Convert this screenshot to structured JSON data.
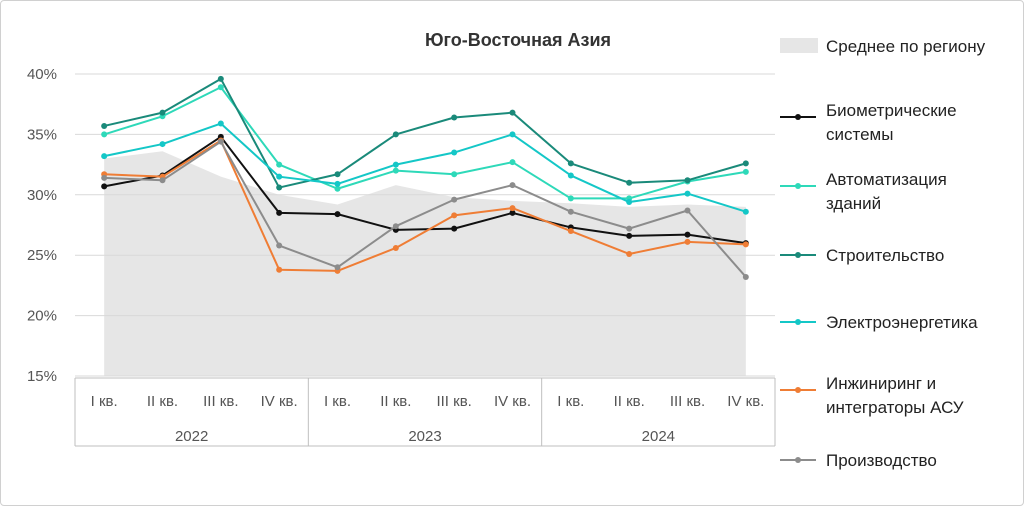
{
  "chart_data": {
    "type": "line",
    "title": "Юго-Восточная Азия",
    "ylim": [
      15,
      40
    ],
    "yticks": [
      "15%",
      "20%",
      "25%",
      "30%",
      "35%",
      "40%"
    ],
    "ytick_values": [
      15,
      20,
      25,
      30,
      35,
      40
    ],
    "categories": [
      "I кв.",
      "II кв.",
      "III кв.",
      "IV кв.",
      "I кв.",
      "II кв.",
      "III кв.",
      "IV кв.",
      "I кв.",
      "II кв.",
      "III кв.",
      "IV кв."
    ],
    "years": [
      "2022",
      "2023",
      "2024"
    ],
    "area": {
      "name": "Среднее по региону",
      "color": "#e6e6e6",
      "values": [
        33.0,
        33.6,
        31.5,
        30.0,
        29.2,
        30.8,
        29.8,
        29.5,
        29.3,
        29.0,
        29.2,
        29.0
      ]
    },
    "series": [
      {
        "name": "Биометрические системы",
        "label_lines": [
          "Биометрические",
          "системы"
        ],
        "color": "#111111",
        "values": [
          30.7,
          31.6,
          34.8,
          28.5,
          28.4,
          27.1,
          27.2,
          28.5,
          27.3,
          26.6,
          26.7,
          26.0
        ]
      },
      {
        "name": "Автоматизация зданий",
        "label_lines": [
          "Автоматизация",
          "зданий"
        ],
        "color": "#2ed9b9",
        "values": [
          35.0,
          36.5,
          38.9,
          32.5,
          30.5,
          32.0,
          31.7,
          32.7,
          29.7,
          29.7,
          31.1,
          31.9
        ]
      },
      {
        "name": "Строительство",
        "label_lines": [
          "Строительство"
        ],
        "color": "#1a8a7a",
        "values": [
          35.7,
          36.8,
          39.6,
          30.6,
          31.7,
          35.0,
          36.4,
          36.8,
          32.6,
          31.0,
          31.2,
          32.6
        ]
      },
      {
        "name": "Электроэнергетика",
        "label_lines": [
          "Электроэнергетика"
        ],
        "color": "#14c7c7",
        "values": [
          33.2,
          34.2,
          35.9,
          31.5,
          30.9,
          32.5,
          33.5,
          35.0,
          31.6,
          29.4,
          30.1,
          28.6
        ]
      },
      {
        "name": "Инжиниринг и интеграторы АСУ",
        "label_lines": [
          "Инжиниринг и",
          "интеграторы АСУ"
        ],
        "color": "#ef7d35",
        "values": [
          31.7,
          31.5,
          34.5,
          23.8,
          23.7,
          25.6,
          28.3,
          28.9,
          27.0,
          25.1,
          26.1,
          25.9
        ]
      },
      {
        "name": "Производство",
        "label_lines": [
          "Производство"
        ],
        "color": "#8c8c8c",
        "values": [
          31.4,
          31.2,
          34.4,
          25.8,
          24.0,
          27.4,
          29.6,
          30.8,
          28.6,
          27.2,
          28.7,
          23.2
        ]
      }
    ]
  }
}
